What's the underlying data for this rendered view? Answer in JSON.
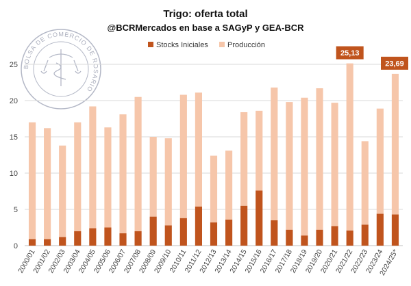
{
  "chart_data": {
    "type": "bar",
    "stacked": true,
    "title": "Trigo: oferta total",
    "subtitle": "@BCRMercados en base a SAGyP y GEA-BCR",
    "ylim": [
      0,
      25
    ],
    "yticks": [
      0,
      5,
      10,
      15,
      20,
      25
    ],
    "legend_position": "top-center",
    "categories": [
      "2000/01",
      "2001/02",
      "2002/03",
      "2003/04",
      "2004/05",
      "2005/06",
      "2006/07",
      "2007/08",
      "2008/09",
      "2009/10",
      "2010/11",
      "2011/12",
      "2012/13",
      "2013/14",
      "2014/15",
      "2015/16",
      "2016/17",
      "2017/18",
      "2018/19",
      "2019/20",
      "2020/21",
      "2021/22",
      "2022/23",
      "2023/24",
      "2024/25*"
    ],
    "series": [
      {
        "name": "Stocks Iniciales",
        "color": "#c0541d",
        "values": [
          0.9,
          0.9,
          1.2,
          2.0,
          2.4,
          2.5,
          1.7,
          2.0,
          4.0,
          2.8,
          3.8,
          5.4,
          3.2,
          3.6,
          5.5,
          7.6,
          3.5,
          2.2,
          1.4,
          2.2,
          2.7,
          2.1,
          2.9,
          4.4,
          4.3
        ]
      },
      {
        "name": "Producción",
        "color": "#f6c6aa",
        "values": [
          16.1,
          15.3,
          12.6,
          15.0,
          16.8,
          13.8,
          16.4,
          18.5,
          11.0,
          12.0,
          17.0,
          15.7,
          9.2,
          9.5,
          12.9,
          11.0,
          18.3,
          17.6,
          19.0,
          19.5,
          17.0,
          23.03,
          11.5,
          14.5,
          19.39
        ]
      }
    ],
    "annotations": [
      {
        "category": "2021/22",
        "label": "25,13"
      },
      {
        "category": "2024/25*",
        "label": "23,69"
      }
    ]
  },
  "seal": {
    "text": "BOLSA DE COMERCIO DE ROSARIO"
  }
}
